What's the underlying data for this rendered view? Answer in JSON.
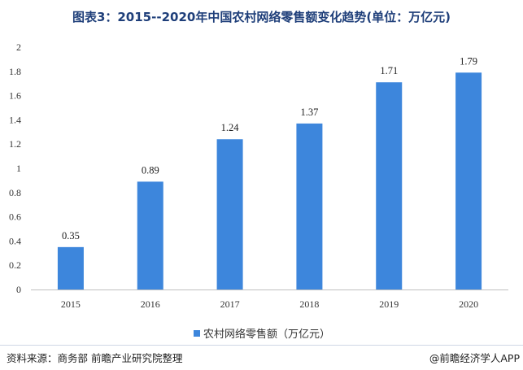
{
  "title": "图表3：2015--2020年中国农村网络零售额变化趋势(单位：万亿元)",
  "legend": {
    "label": "农村网络零售额（万亿元）"
  },
  "footer": {
    "source": "资料来源：商务部 前瞻产业研究院整理",
    "brand": "@前瞻经济学人APP"
  },
  "colors": {
    "bar": "#3d86dc",
    "axis": "#bfbfbf"
  },
  "chart_data": {
    "type": "bar",
    "categories": [
      "2015",
      "2016",
      "2017",
      "2018",
      "2019",
      "2020"
    ],
    "series": [
      {
        "name": "农村网络零售额（万亿元）",
        "values": [
          0.35,
          0.89,
          1.24,
          1.37,
          1.71,
          1.79
        ]
      }
    ],
    "ylim": [
      0,
      2
    ],
    "yticks": [
      "0",
      "0.2",
      "0.4",
      "0.6",
      "0.8",
      "1",
      "1.2",
      "1.4",
      "1.6",
      "1.8",
      "2"
    ],
    "data_labels": [
      "0.35",
      "0.89",
      "1.24",
      "1.37",
      "1.71",
      "1.79"
    ],
    "grid": false,
    "legend_position": "bottom"
  }
}
